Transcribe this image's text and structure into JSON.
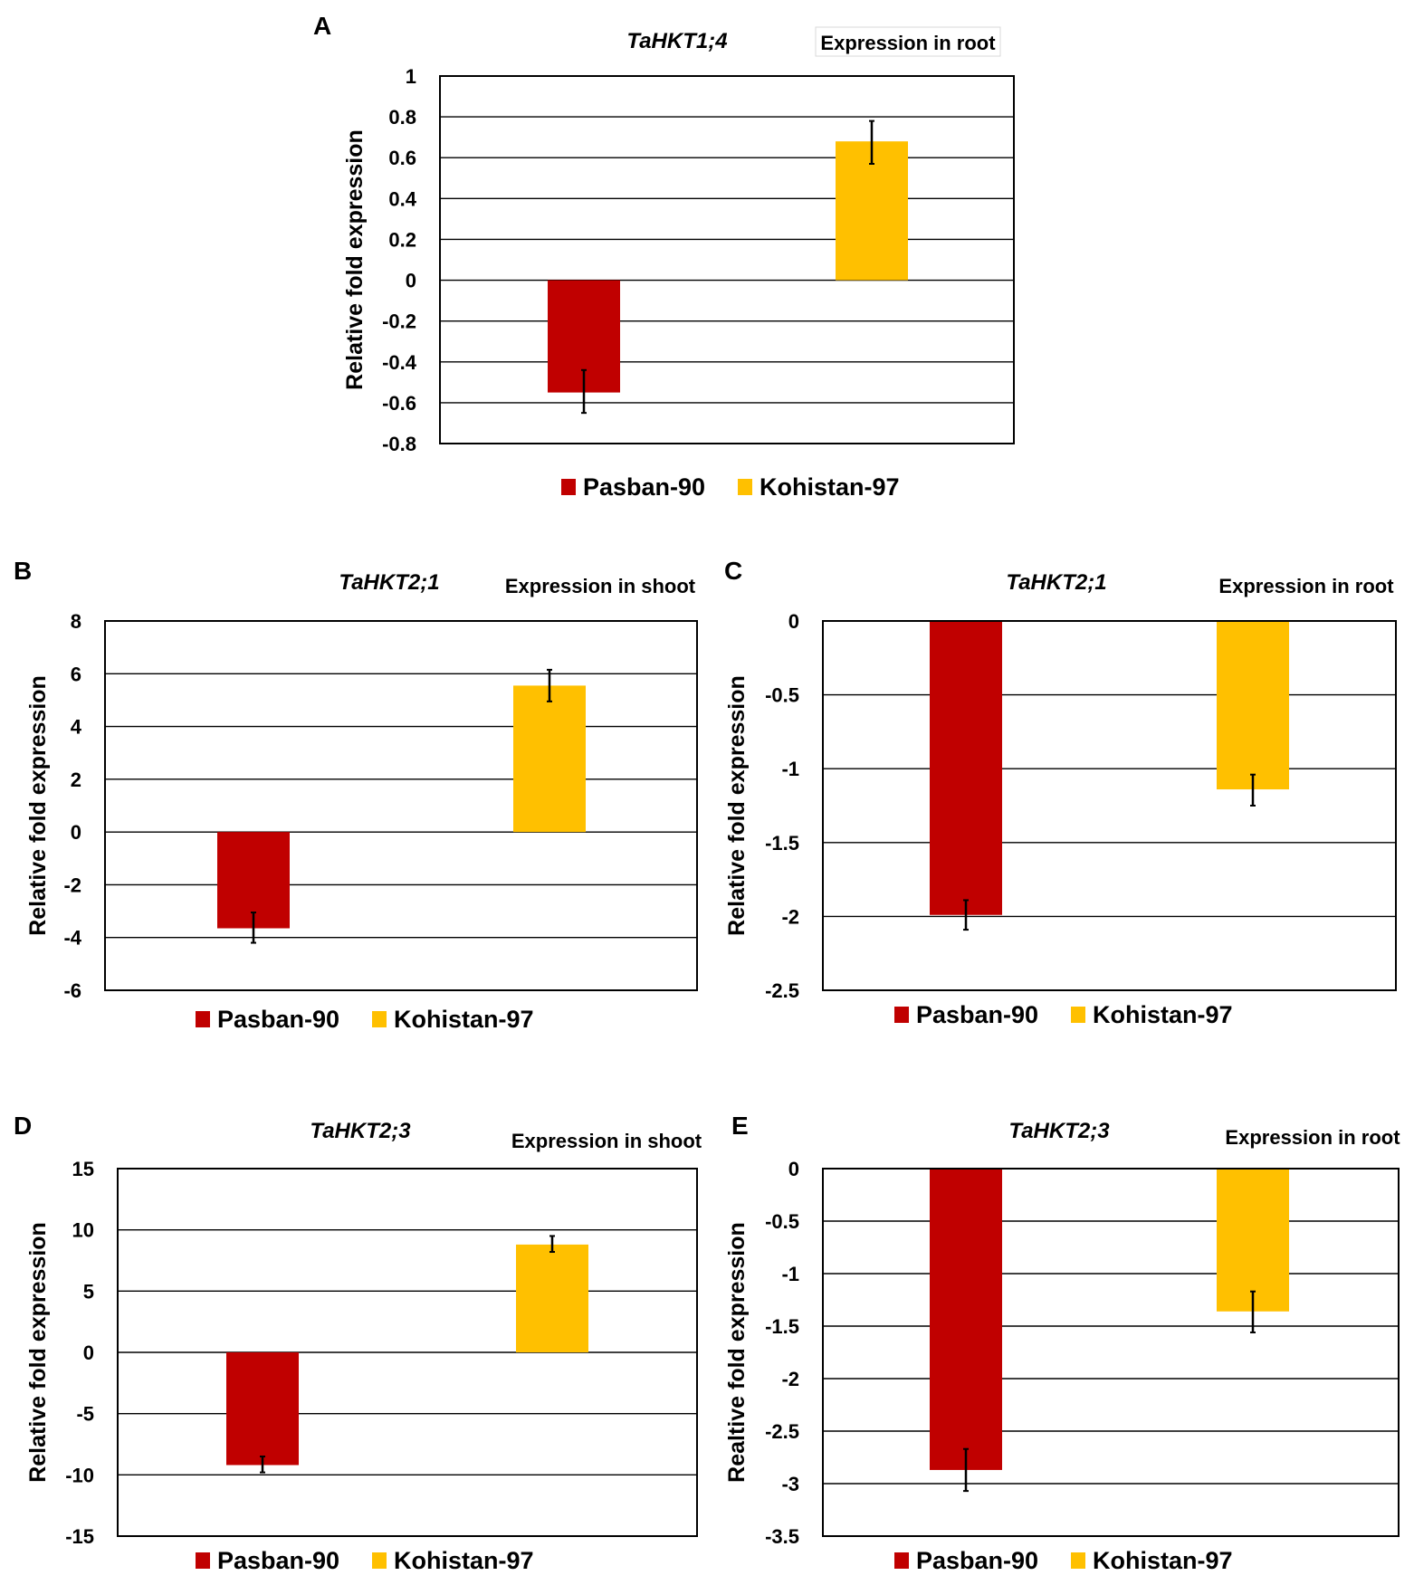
{
  "colors": {
    "pasban": "#C00000",
    "kohistan": "#FFC000",
    "grid": "#000000",
    "text": "#000000"
  },
  "chart_data": [
    {
      "panel": "A",
      "type": "bar",
      "title": "TaHKT1;4",
      "subtitle": "Expression in root",
      "ylabel": "Relative fold expression",
      "xlabel": "",
      "ylim": [
        -0.8,
        1
      ],
      "ticks": [
        1,
        0.8,
        0.6,
        0.4,
        0.2,
        0,
        -0.2,
        -0.4,
        -0.6,
        -0.8
      ],
      "tick_labels": [
        "1",
        "0.8",
        "0.6",
        "0.4",
        "0.2",
        "0",
        "-0.2",
        "-0.4",
        "-0.6",
        "-0.8"
      ],
      "series": [
        {
          "name": "Pasban-90",
          "value": -0.55,
          "err_low": -0.65,
          "err_high": -0.44
        },
        {
          "name": "Kohistan-97",
          "value": 0.68,
          "err_low": 0.57,
          "err_high": 0.78
        }
      ],
      "legend": [
        "Pasban-90",
        "Kohistan-97"
      ]
    },
    {
      "panel": "B",
      "type": "bar",
      "title": "TaHKT2;1",
      "subtitle": "Expression in shoot",
      "ylabel": "Relative fold expression",
      "xlabel": "",
      "ylim": [
        -6,
        8
      ],
      "ticks": [
        8,
        6,
        4,
        2,
        0,
        -2,
        -4,
        -6
      ],
      "tick_labels": [
        "8",
        "6",
        "4",
        "2",
        "0",
        "-2",
        "-4",
        "-6"
      ],
      "series": [
        {
          "name": "Pasban-90",
          "value": -3.65,
          "err_low": -4.2,
          "err_high": -3.05
        },
        {
          "name": "Kohistan-97",
          "value": 5.55,
          "err_low": 4.95,
          "err_high": 6.15
        }
      ],
      "legend": [
        "Pasban-90",
        "Kohistan-97"
      ]
    },
    {
      "panel": "C",
      "type": "bar",
      "title": "TaHKT2;1",
      "subtitle": "Expression in root",
      "ylabel": "Relative fold expression",
      "xlabel": "",
      "ylim": [
        -2.5,
        0
      ],
      "ticks": [
        0,
        -0.5,
        -1,
        -1.5,
        -2,
        -2.5
      ],
      "tick_labels": [
        "0",
        "-0.5",
        "-1",
        "-1.5",
        "-2",
        "-2.5"
      ],
      "series": [
        {
          "name": "Pasban-90",
          "value": -1.99,
          "err_low": -2.09,
          "err_high": -1.89
        },
        {
          "name": "Kohistan-97",
          "value": -1.14,
          "err_low": -1.25,
          "err_high": -1.04
        }
      ],
      "legend": [
        "Pasban-90",
        "Kohistan-97"
      ]
    },
    {
      "panel": "D",
      "type": "bar",
      "title": "TaHKT2;3",
      "subtitle": "Expression in shoot",
      "ylabel": "Relative fold expression",
      "xlabel": "",
      "ylim": [
        -15,
        15
      ],
      "ticks": [
        15,
        10,
        5,
        0,
        -5,
        -10,
        -15
      ],
      "tick_labels": [
        "15",
        "10",
        "5",
        "0",
        "-5",
        "-10",
        "-15"
      ],
      "series": [
        {
          "name": "Pasban-90",
          "value": -9.2,
          "err_low": -9.8,
          "err_high": -8.5
        },
        {
          "name": "Kohistan-97",
          "value": 8.8,
          "err_low": 8.2,
          "err_high": 9.5
        }
      ],
      "legend": [
        "Pasban-90",
        "Kohistan-97"
      ]
    },
    {
      "panel": "E",
      "type": "bar",
      "title": "TaHKT2;3",
      "subtitle": "Expression in root",
      "ylabel": "Realtive fold expression",
      "xlabel": "",
      "ylim": [
        -3.5,
        0
      ],
      "ticks": [
        0,
        -0.5,
        -1,
        -1.5,
        -2,
        -2.5,
        -3,
        -3.5
      ],
      "tick_labels": [
        "0",
        "-0.5",
        "-1",
        "-1.5",
        "-2",
        "-2.5",
        "-3",
        "-3.5"
      ],
      "series": [
        {
          "name": "Pasban-90",
          "value": -2.87,
          "err_low": -3.07,
          "err_high": -2.67
        },
        {
          "name": "Kohistan-97",
          "value": -1.36,
          "err_low": -1.56,
          "err_high": -1.17
        }
      ],
      "legend": [
        "Pasban-90",
        "Kohistan-97"
      ]
    }
  ]
}
